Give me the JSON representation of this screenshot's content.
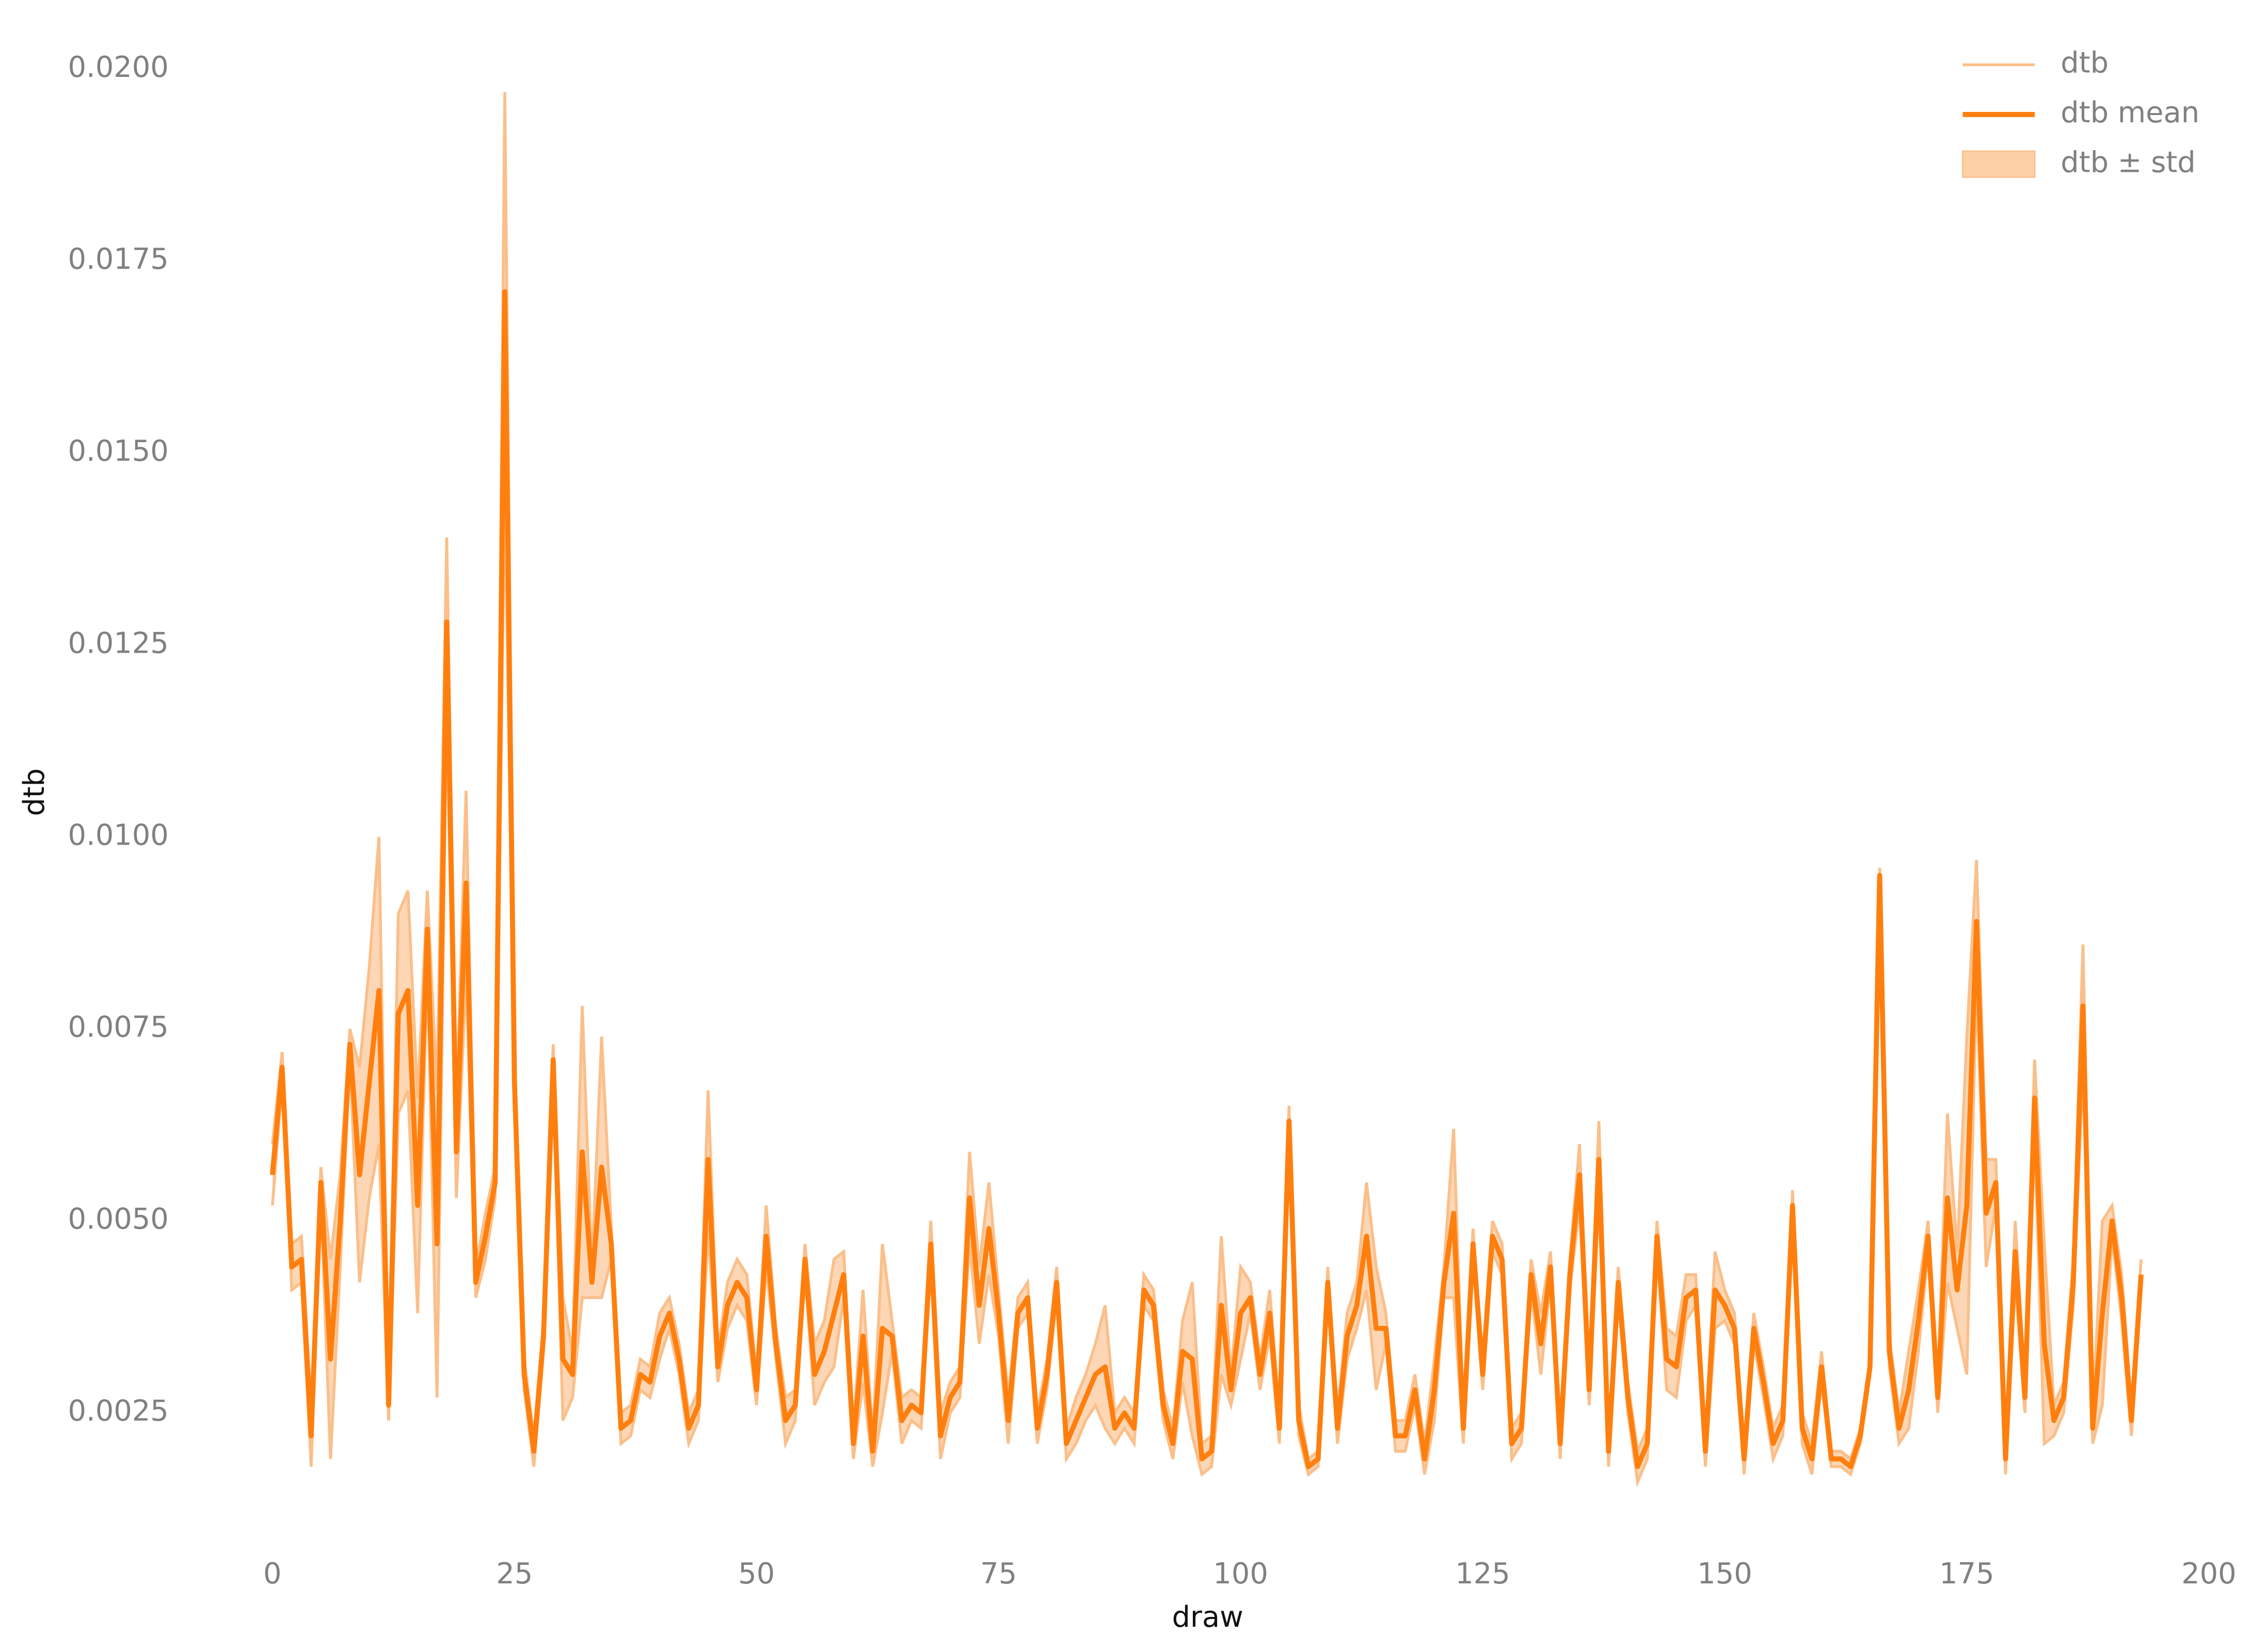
{
  "chart_data": {
    "type": "line",
    "x_label": "draw",
    "y_label": "dtb",
    "x": [
      0,
      1,
      2,
      3,
      4,
      5,
      6,
      7,
      8,
      9,
      10,
      11,
      12,
      13,
      14,
      15,
      16,
      17,
      18,
      19,
      20,
      21,
      22,
      23,
      24,
      25,
      26,
      27,
      28,
      29,
      30,
      31,
      32,
      33,
      34,
      35,
      36,
      37,
      38,
      39,
      40,
      41,
      42,
      43,
      44,
      45,
      46,
      47,
      48,
      49,
      50,
      51,
      52,
      53,
      54,
      55,
      56,
      57,
      58,
      59,
      60,
      61,
      62,
      63,
      64,
      65,
      66,
      67,
      68,
      69,
      70,
      71,
      72,
      73,
      74,
      75,
      76,
      77,
      78,
      79,
      80,
      81,
      82,
      83,
      84,
      85,
      86,
      87,
      88,
      89,
      90,
      91,
      92,
      93,
      94,
      95,
      96,
      97,
      98,
      99,
      100,
      101,
      102,
      103,
      104,
      105,
      106,
      107,
      108,
      109,
      110,
      111,
      112,
      113,
      114,
      115,
      116,
      117,
      118,
      119,
      120,
      121,
      122,
      123,
      124,
      125,
      126,
      127,
      128,
      129,
      130,
      131,
      132,
      133,
      134,
      135,
      136,
      137,
      138,
      139,
      140,
      141,
      142,
      143,
      144,
      145,
      146,
      147,
      148,
      149,
      150,
      151,
      152,
      153,
      154,
      155,
      156,
      157,
      158,
      159,
      160,
      161,
      162,
      163,
      164,
      165,
      166,
      167,
      168,
      169,
      170,
      171,
      172,
      173,
      174,
      175,
      176,
      177,
      178,
      179,
      180,
      181,
      182,
      183,
      184,
      185,
      186,
      187,
      188,
      189,
      190,
      191,
      192,
      193
    ],
    "series": [
      {
        "name": "dtb mean",
        "color": "#ff7f0e",
        "values": [
          0.0056,
          0.007,
          0.0044,
          0.0045,
          0.0022,
          0.0055,
          0.0032,
          0.005,
          0.0073,
          0.0056,
          0.0068,
          0.008,
          0.0026,
          0.0077,
          0.008,
          0.0052,
          0.0088,
          0.0047,
          0.0128,
          0.0059,
          0.0094,
          0.0042,
          0.0048,
          0.0055,
          0.0171,
          0.0068,
          0.003,
          0.002,
          0.0035,
          0.0071,
          0.0032,
          0.003,
          0.0059,
          0.0042,
          0.0057,
          0.0047,
          0.0023,
          0.0024,
          0.003,
          0.0029,
          0.0035,
          0.0038,
          0.0032,
          0.0023,
          0.0026,
          0.0058,
          0.0031,
          0.0039,
          0.0042,
          0.004,
          0.0028,
          0.0048,
          0.0034,
          0.0024,
          0.0026,
          0.0045,
          0.003,
          0.0033,
          0.0038,
          0.0043,
          0.0021,
          0.0035,
          0.002,
          0.0036,
          0.0035,
          0.0024,
          0.0026,
          0.0025,
          0.0047,
          0.0022,
          0.0027,
          0.0029,
          0.0053,
          0.0039,
          0.0049,
          0.0038,
          0.0024,
          0.0038,
          0.004,
          0.0023,
          0.003,
          0.0042,
          0.0021,
          0.0024,
          0.0027,
          0.003,
          0.0031,
          0.0023,
          0.0025,
          0.0023,
          0.0041,
          0.0039,
          0.0026,
          0.0021,
          0.0033,
          0.0032,
          0.0019,
          0.002,
          0.0039,
          0.0028,
          0.0038,
          0.004,
          0.003,
          0.0038,
          0.0023,
          0.0063,
          0.0024,
          0.0018,
          0.0019,
          0.0042,
          0.0023,
          0.0035,
          0.0039,
          0.0048,
          0.0036,
          0.0036,
          0.0022,
          0.0022,
          0.0028,
          0.0019,
          0.0028,
          0.0042,
          0.0051,
          0.0023,
          0.0047,
          0.003,
          0.0048,
          0.0045,
          0.0021,
          0.0023,
          0.0043,
          0.0034,
          0.0044,
          0.0021,
          0.0043,
          0.0056,
          0.0028,
          0.0058,
          0.002,
          0.0042,
          0.0027,
          0.0018,
          0.0021,
          0.0048,
          0.0032,
          0.0031,
          0.004,
          0.0041,
          0.002,
          0.0041,
          0.0039,
          0.0036,
          0.0019,
          0.0036,
          0.0029,
          0.0021,
          0.0024,
          0.0052,
          0.0023,
          0.0019,
          0.0031,
          0.0019,
          0.0019,
          0.0018,
          0.0022,
          0.0031,
          0.0095,
          0.0033,
          0.0023,
          0.0028,
          0.0037,
          0.0048,
          0.0027,
          0.0053,
          0.0041,
          0.0052,
          0.0089,
          0.0051,
          0.0055,
          0.0019,
          0.0046,
          0.0027,
          0.0066,
          0.0034,
          0.0024,
          0.0027,
          0.0042,
          0.0078,
          0.0023,
          0.0038,
          0.005,
          0.004,
          0.0024,
          0.0043
        ],
        "std": [
          0.0004,
          0.0002,
          0.0003,
          0.0003,
          0.0004,
          0.0002,
          0.0013,
          0.0006,
          0.0002,
          0.0014,
          0.0015,
          0.002,
          0.0002,
          0.0013,
          0.0013,
          0.0014,
          0.0005,
          0.002,
          0.0011,
          0.0006,
          0.0012,
          0.0002,
          0.0003,
          0.0002,
          0.0026,
          0.0002,
          0.0002,
          0.0002,
          0.0002,
          0.0002,
          0.0008,
          0.0003,
          0.0019,
          0.0002,
          0.0017,
          0.0002,
          0.0002,
          0.0002,
          0.0002,
          0.0002,
          0.0003,
          0.0002,
          0.0002,
          0.0002,
          0.0002,
          0.0009,
          0.0002,
          0.0003,
          0.0003,
          0.0003,
          0.0002,
          0.0004,
          0.0002,
          0.0003,
          0.0002,
          0.0002,
          0.0004,
          0.0004,
          0.0007,
          0.0003,
          0.0002,
          0.0006,
          0.0002,
          0.0011,
          0.0002,
          0.0003,
          0.0002,
          0.0002,
          0.0003,
          0.0003,
          0.0002,
          0.0002,
          0.0006,
          0.0005,
          0.0006,
          0.0003,
          0.0003,
          0.0002,
          0.0002,
          0.0002,
          0.0002,
          0.0002,
          0.0002,
          0.0003,
          0.0003,
          0.0004,
          0.0008,
          0.0002,
          0.0002,
          0.0002,
          0.0002,
          0.0002,
          0.0002,
          0.0002,
          0.0004,
          0.001,
          0.0002,
          0.0002,
          0.0009,
          0.0002,
          0.0006,
          0.0002,
          0.0002,
          0.0003,
          0.0002,
          0.0002,
          0.0002,
          0.0001,
          0.0001,
          0.0002,
          0.0002,
          0.0003,
          0.0003,
          0.0007,
          0.0008,
          0.0002,
          0.0002,
          0.0002,
          0.0002,
          0.0002,
          0.0004,
          0.0002,
          0.0011,
          0.0002,
          0.0002,
          0.0002,
          0.0002,
          0.0002,
          0.0002,
          0.0002,
          0.0002,
          0.0004,
          0.0002,
          0.0002,
          0.0002,
          0.0004,
          0.0002,
          0.0005,
          0.0002,
          0.0002,
          0.0002,
          0.0002,
          0.0002,
          0.0002,
          0.0004,
          0.0004,
          0.0003,
          0.0002,
          0.0002,
          0.0005,
          0.0002,
          0.0002,
          0.0002,
          0.0002,
          0.0002,
          0.0002,
          0.0002,
          0.0002,
          0.0002,
          0.0002,
          0.0002,
          0.0001,
          0.0001,
          0.0001,
          0.0001,
          0.0001,
          0.0001,
          0.0002,
          0.0002,
          0.0005,
          0.0004,
          0.0002,
          0.0002,
          0.0011,
          0.0005,
          0.0022,
          0.0008,
          0.0007,
          0.0003,
          0.0002,
          0.0004,
          0.0002,
          0.0005,
          0.0013,
          0.0002,
          0.0002,
          0.0003,
          0.0008,
          0.0002,
          0.0012,
          0.0002,
          0.0003,
          0.0002,
          0.0002
        ]
      }
    ],
    "band": {
      "name": "dtb ± std",
      "color": "#fdd0a8"
    },
    "runs": {
      "name": "dtb",
      "color": "#fbbf8a"
    },
    "xlim": [
      -9,
      203
    ],
    "ylim": [
      0.0008,
      0.0202
    ],
    "xticks": [
      0,
      25,
      50,
      75,
      100,
      125,
      150,
      175,
      200
    ],
    "yticks": [
      {
        "value": 0.0025,
        "label": "0.0025"
      },
      {
        "value": 0.005,
        "label": "0.0050"
      },
      {
        "value": 0.0075,
        "label": "0.0075"
      },
      {
        "value": 0.01,
        "label": "0.0100"
      },
      {
        "value": 0.0125,
        "label": "0.0125"
      },
      {
        "value": 0.015,
        "label": "0.0150"
      },
      {
        "value": 0.0175,
        "label": "0.0175"
      },
      {
        "value": 0.02,
        "label": "0.0200"
      }
    ],
    "grid": false,
    "legend": "upper right"
  }
}
